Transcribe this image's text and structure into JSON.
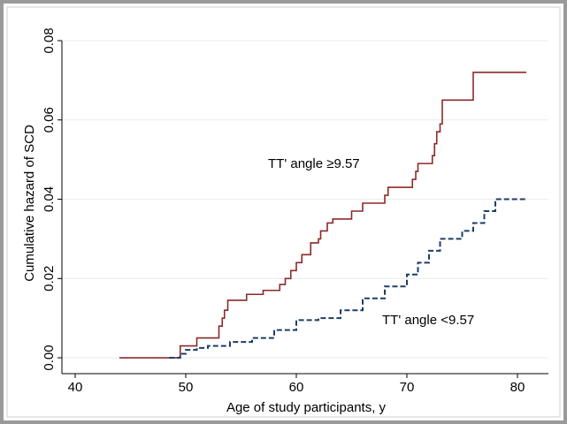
{
  "chart_data": {
    "type": "line",
    "drawstyle": "steps-post",
    "xlabel": "Age of study participants, y",
    "ylabel": "Cumulative hazard of SCD",
    "xlim": [
      38.8,
      82.8
    ],
    "ylim": [
      -0.004,
      0.08
    ],
    "xticks": [
      40,
      50,
      60,
      70,
      80
    ],
    "yticks": [
      {
        "value": 0,
        "label": "0.00"
      },
      {
        "value": 0.02,
        "label": "0.02"
      },
      {
        "value": 0.04,
        "label": "0.04"
      },
      {
        "value": 0.06,
        "label": "0.06"
      },
      {
        "value": 0.08,
        "label": "0.08"
      }
    ],
    "grid": true,
    "series": [
      {
        "color": "#8b2a2a",
        "dash": false,
        "x": [
          44,
          49.5,
          51,
          53,
          53.3,
          53.5,
          53.8,
          55.5,
          57,
          58.5,
          59,
          59.5,
          60,
          60.5,
          61.3,
          62,
          62.2,
          62.8,
          63.3,
          65,
          66,
          68,
          68.3,
          70.5,
          70.8,
          71,
          72.3,
          72.5,
          72.7,
          73,
          73.2,
          76,
          80.8
        ],
        "values": [
          0,
          0.003,
          0.005,
          0.008,
          0.01,
          0.012,
          0.0145,
          0.016,
          0.017,
          0.0185,
          0.02,
          0.022,
          0.024,
          0.026,
          0.029,
          0.03,
          0.032,
          0.034,
          0.035,
          0.037,
          0.039,
          0.041,
          0.043,
          0.045,
          0.047,
          0.049,
          0.051,
          0.054,
          0.057,
          0.059,
          0.065,
          0.072,
          0.072
        ]
      },
      {
        "color": "#1f3d66",
        "dash": true,
        "x": [
          48.5,
          49.5,
          50,
          51,
          52,
          54,
          56,
          58,
          60,
          62,
          64,
          66,
          68,
          70,
          71,
          72,
          73,
          75,
          76,
          77,
          78,
          80.8
        ],
        "values": [
          0,
          0.001,
          0.002,
          0.0025,
          0.003,
          0.004,
          0.005,
          0.007,
          0.0095,
          0.01,
          0.012,
          0.015,
          0.018,
          0.021,
          0.024,
          0.027,
          0.03,
          0.032,
          0.034,
          0.037,
          0.04,
          0.04
        ]
      }
    ],
    "annotations": [
      "TT' angle ≥9.57",
      "TT' angle <9.57"
    ]
  }
}
